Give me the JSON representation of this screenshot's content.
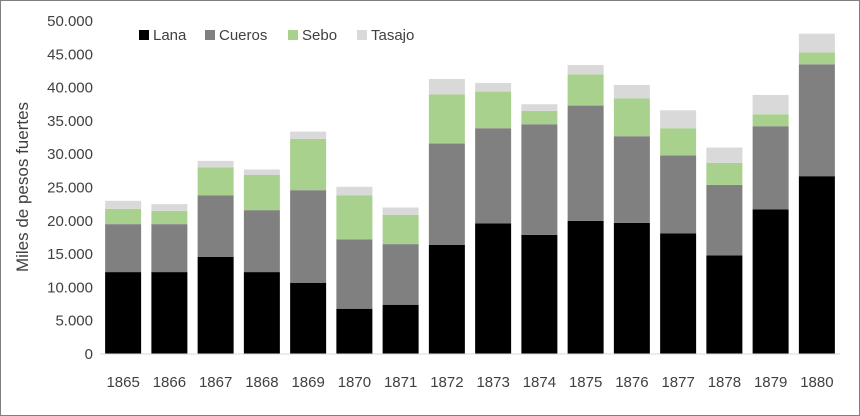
{
  "chart_data": {
    "type": "bar",
    "stacked": true,
    "title": "",
    "xlabel": "",
    "ylabel": "Miles de pesos fuertes",
    "ylim": [
      0,
      50000
    ],
    "yticks": [
      "0",
      "5.000",
      "10.000",
      "15.000",
      "20.000",
      "25.000",
      "30.000",
      "35.000",
      "40.000",
      "45.000",
      "50.000"
    ],
    "grid": false,
    "legend_position": "top-left",
    "categories": [
      "1865",
      "1866",
      "1867",
      "1868",
      "1869",
      "1870",
      "1871",
      "1872",
      "1873",
      "1874",
      "1875",
      "1876",
      "1877",
      "1878",
      "1879",
      "1880"
    ],
    "series": [
      {
        "name": "Lana",
        "color": "#000000",
        "values": [
          12300,
          12300,
          14600,
          12300,
          10700,
          6800,
          7400,
          16400,
          19600,
          17900,
          20000,
          19700,
          18100,
          14800,
          21700,
          26700
        ]
      },
      {
        "name": "Cueros",
        "color": "#808080",
        "values": [
          7200,
          7200,
          9200,
          9300,
          13900,
          10400,
          9100,
          15200,
          14300,
          16600,
          17300,
          13000,
          11700,
          10600,
          12500,
          16800
        ]
      },
      {
        "name": "Sebo",
        "color": "#a9d18e",
        "values": [
          2300,
          2000,
          4200,
          5300,
          7700,
          6600,
          4400,
          7400,
          5500,
          2000,
          4700,
          5700,
          4100,
          3300,
          1800,
          1800
        ]
      },
      {
        "name": "Tasajo",
        "color": "#d9d9d9",
        "values": [
          1200,
          1000,
          1000,
          800,
          1100,
          1300,
          1100,
          2300,
          1300,
          1000,
          1400,
          2000,
          2700,
          2300,
          2900,
          2800
        ]
      }
    ]
  }
}
